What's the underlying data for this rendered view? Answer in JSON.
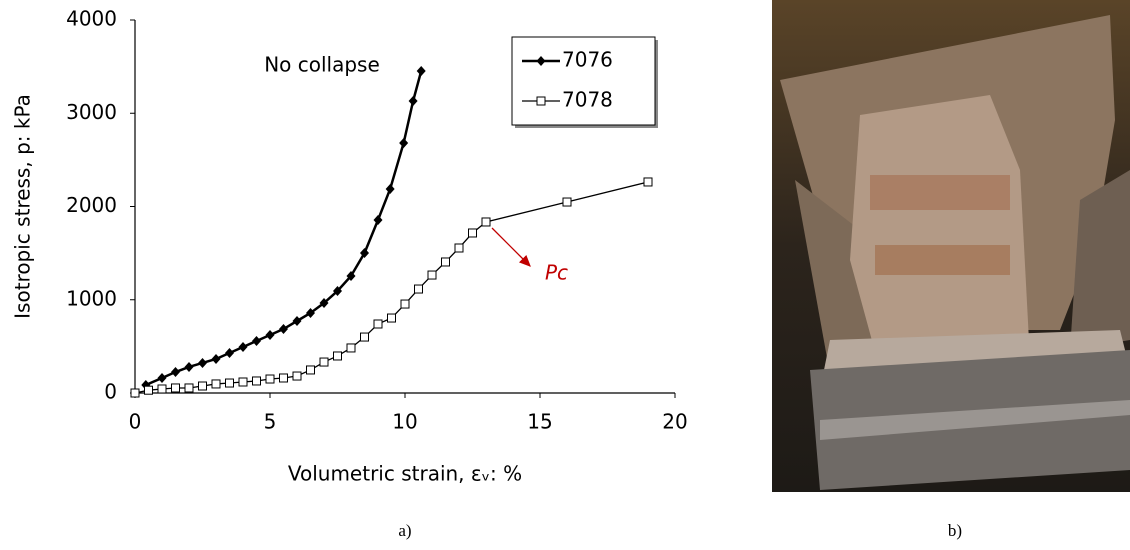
{
  "chart_data": {
    "type": "line",
    "xlabel": "Volumetric strain, εᵥ: %",
    "ylabel": "Isotropic stress, p: kPa",
    "xlim": [
      0,
      20
    ],
    "xticks": [
      0,
      5,
      10,
      15,
      20
    ],
    "ylim": [
      0,
      4000
    ],
    "yticks": [
      0,
      1000,
      2000,
      3000,
      4000
    ],
    "grid": false,
    "legend": "upper right",
    "series": [
      {
        "name": "7076",
        "color": "#000000",
        "marker": "diamond",
        "x": [
          0.4,
          1.0,
          1.5,
          2.0,
          2.5,
          3.0,
          3.5,
          4.0,
          4.5,
          5.0,
          5.5,
          6.0,
          6.5,
          7.0,
          7.5,
          8.0,
          8.5,
          9.0,
          9.45,
          9.95,
          10.3,
          10.6
        ],
        "values": [
          86,
          161,
          225,
          279,
          322,
          365,
          429,
          493,
          558,
          622,
          686,
          772,
          858,
          965,
          1094,
          1255,
          1501,
          1855,
          2188,
          2681,
          3131,
          3453
        ]
      },
      {
        "name": "7078",
        "color": "#000000",
        "marker": "square",
        "x": [
          0,
          0.5,
          1.0,
          1.5,
          2.0,
          2.5,
          3.0,
          3.5,
          4.0,
          4.5,
          5.0,
          5.5,
          6.0,
          6.5,
          7.0,
          7.5,
          8.0,
          8.5,
          9.0,
          9.5,
          10.0,
          10.5,
          11.0,
          11.5,
          12.0,
          12.5,
          13.0,
          16.0,
          19.0
        ],
        "values": [
          0,
          30,
          43,
          54,
          54,
          75,
          97,
          107,
          118,
          129,
          150,
          161,
          182,
          247,
          332,
          397,
          483,
          600,
          740,
          804,
          954,
          1115,
          1265,
          1405,
          1555,
          1716,
          1834,
          2048,
          2263
        ]
      }
    ],
    "annotations": [
      {
        "text": "No collapse"
      },
      {
        "text": "Pc",
        "color": "#c00000"
      }
    ]
  },
  "captions": [
    "a)",
    "b)"
  ]
}
